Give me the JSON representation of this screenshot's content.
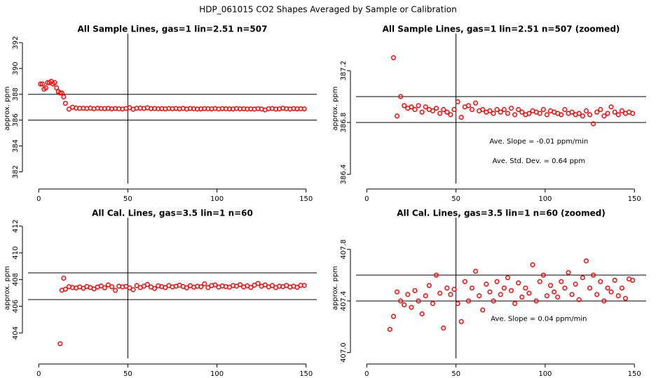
{
  "title": "HDP_061015  CO2 Shapes Averaged by Sample or Calibration",
  "chart_data": [
    {
      "type": "scatter",
      "title": "All Sample Lines, gas=1 lin=2.51 n=507",
      "y_label": "approx. ppm",
      "color": "#ff0000",
      "xlim": [
        -6,
        156
      ],
      "ylim": [
        381.1,
        392.7
      ],
      "xticks": [
        0,
        50,
        100,
        150
      ],
      "yticks": [
        382,
        384,
        386,
        388,
        390,
        392
      ],
      "hlines": [
        388,
        386
      ],
      "vline": 50,
      "x": [
        1,
        2,
        3,
        4,
        5,
        6,
        7,
        8,
        9,
        10,
        11,
        12,
        13,
        14,
        15,
        17,
        19,
        21,
        23,
        25,
        27,
        29,
        31,
        33,
        35,
        37,
        39,
        41,
        43,
        45,
        47,
        49,
        51,
        53,
        55,
        57,
        59,
        61,
        63,
        65,
        67,
        69,
        71,
        73,
        75,
        77,
        79,
        81,
        83,
        85,
        87,
        89,
        91,
        93,
        95,
        97,
        99,
        101,
        103,
        105,
        107,
        109,
        111,
        113,
        115,
        117,
        119,
        121,
        123,
        125,
        127,
        129,
        131,
        133,
        135,
        137,
        139,
        141,
        143,
        145,
        147,
        149
      ],
      "values": [
        388.8,
        388.8,
        388.4,
        388.5,
        388.9,
        388.9,
        389.0,
        388.8,
        388.9,
        388.5,
        388.2,
        388.1,
        388.1,
        387.8,
        387.3,
        386.85,
        387.0,
        386.93,
        386.91,
        386.92,
        386.9,
        386.93,
        386.88,
        386.92,
        386.9,
        386.89,
        386.91,
        386.87,
        386.9,
        386.88,
        386.86,
        386.9,
        386.96,
        386.84,
        386.92,
        386.93,
        386.9,
        386.95,
        386.89,
        386.9,
        386.88,
        386.89,
        386.87,
        386.9,
        386.88,
        386.9,
        386.87,
        386.91,
        386.86,
        386.9,
        386.88,
        386.86,
        386.87,
        386.89,
        386.88,
        386.87,
        386.9,
        386.86,
        386.89,
        386.88,
        386.87,
        386.86,
        386.9,
        386.87,
        386.88,
        386.86,
        386.87,
        386.85,
        386.89,
        386.86,
        386.79,
        386.88,
        386.9,
        386.85,
        386.87,
        386.92,
        386.88,
        386.86,
        386.89,
        386.87,
        386.88,
        386.87
      ]
    },
    {
      "type": "scatter",
      "title": "All Sample Lines, gas=1 lin=2.51 n=507 (zoomed)",
      "y_label": "approx. ppm",
      "color": "#ff0000",
      "xlim": [
        -6,
        156.6
      ],
      "ylim": [
        386.33,
        387.486
      ],
      "xticks": [
        0,
        50,
        100,
        150
      ],
      "yticks": [
        386.4,
        386.8,
        387.2
      ],
      "hlines": [
        387.0,
        386.8
      ],
      "vline": 50,
      "annotations": [
        "Ave. Slope =  -0.01  ppm/min",
        "Ave. Std. Dev. =  0.64  ppm"
      ],
      "x": [
        15,
        17,
        19,
        21,
        23,
        25,
        27,
        29,
        31,
        33,
        35,
        37,
        39,
        41,
        43,
        45,
        47,
        49,
        51,
        53,
        55,
        57,
        59,
        61,
        63,
        65,
        67,
        69,
        71,
        73,
        75,
        77,
        79,
        81,
        83,
        85,
        87,
        89,
        91,
        93,
        95,
        97,
        99,
        101,
        103,
        105,
        107,
        109,
        111,
        113,
        115,
        117,
        119,
        121,
        123,
        125,
        127,
        129,
        131,
        133,
        135,
        137,
        139,
        141,
        143,
        145,
        147,
        149
      ],
      "values": [
        387.3,
        386.85,
        387.0,
        386.93,
        386.91,
        386.92,
        386.9,
        386.93,
        386.88,
        386.92,
        386.9,
        386.89,
        386.91,
        386.87,
        386.9,
        386.88,
        386.86,
        386.9,
        386.96,
        386.84,
        386.92,
        386.93,
        386.9,
        386.95,
        386.89,
        386.9,
        386.88,
        386.89,
        386.87,
        386.9,
        386.88,
        386.9,
        386.87,
        386.91,
        386.86,
        386.9,
        386.88,
        386.86,
        386.87,
        386.89,
        386.88,
        386.87,
        386.9,
        386.86,
        386.89,
        386.88,
        386.87,
        386.86,
        386.9,
        386.87,
        386.88,
        386.86,
        386.87,
        386.85,
        386.89,
        386.86,
        386.79,
        386.88,
        386.9,
        386.85,
        386.87,
        386.92,
        386.88,
        386.86,
        386.89,
        386.87,
        386.88,
        386.87
      ]
    },
    {
      "type": "scatter",
      "title": "All Cal. Lines, gas=3.5 lin=1 n=60",
      "y_label": "approx. ppm",
      "color": "#ff0000",
      "xlim": [
        -6,
        156
      ],
      "ylim": [
        402.1,
        412.63
      ],
      "xticks": [
        0,
        50,
        100,
        150
      ],
      "yticks": [
        404,
        406,
        408,
        410,
        412
      ],
      "hlines": [
        408.5,
        406.5
      ],
      "vline": 50,
      "x": [
        12,
        13,
        14,
        15,
        17,
        19,
        21,
        23,
        25,
        27,
        29,
        31,
        33,
        35,
        37,
        39,
        41,
        43,
        45,
        47,
        49,
        51,
        53,
        55,
        57,
        59,
        61,
        63,
        65,
        67,
        69,
        71,
        73,
        75,
        77,
        79,
        81,
        83,
        85,
        87,
        89,
        91,
        93,
        95,
        97,
        99,
        101,
        103,
        105,
        107,
        109,
        111,
        113,
        115,
        117,
        119,
        121,
        123,
        125,
        127,
        129,
        131,
        133,
        135,
        137,
        139,
        141,
        143,
        145,
        147,
        149
      ],
      "values": [
        403.2,
        407.2,
        408.1,
        407.28,
        407.47,
        407.4,
        407.37,
        407.45,
        407.35,
        407.48,
        407.4,
        407.3,
        407.44,
        407.52,
        407.38,
        407.6,
        407.46,
        407.19,
        407.5,
        407.45,
        407.49,
        407.38,
        407.24,
        407.55,
        407.4,
        407.5,
        407.63,
        407.44,
        407.33,
        407.53,
        407.47,
        407.4,
        407.55,
        407.45,
        407.5,
        407.58,
        407.48,
        407.38,
        407.54,
        407.43,
        407.5,
        407.46,
        407.68,
        407.4,
        407.55,
        407.6,
        407.44,
        407.52,
        407.47,
        407.43,
        407.55,
        407.5,
        407.62,
        407.45,
        407.53,
        407.41,
        407.58,
        407.71,
        407.5,
        407.6,
        407.45,
        407.55,
        407.4,
        407.5,
        407.47,
        407.56,
        407.44,
        407.5,
        407.42,
        407.57,
        407.56
      ]
    },
    {
      "type": "scatter",
      "title": "All Cal. Lines, gas=3.5 lin=1 n=60 (zoomed)",
      "y_label": "approx. ppm",
      "color": "#ff0000",
      "xlim": [
        -6,
        156.6
      ],
      "ylim": [
        406.955,
        408.045
      ],
      "xticks": [
        0,
        50,
        100,
        150
      ],
      "yticks": [
        {
          "value": 407,
          "label": "407.0"
        },
        407.4,
        407.8
      ],
      "hlines": [
        407.6,
        407.4
      ],
      "vline": 50,
      "annotations": [
        "Ave. Slope =  0.04  ppm/min"
      ],
      "x": [
        13,
        15,
        17,
        19,
        21,
        23,
        25,
        27,
        29,
        31,
        33,
        35,
        37,
        39,
        41,
        43,
        45,
        47,
        49,
        51,
        53,
        55,
        57,
        59,
        61,
        63,
        65,
        67,
        69,
        71,
        73,
        75,
        77,
        79,
        81,
        83,
        85,
        87,
        89,
        91,
        93,
        95,
        97,
        99,
        101,
        103,
        105,
        107,
        109,
        111,
        113,
        115,
        117,
        119,
        121,
        123,
        125,
        127,
        129,
        131,
        133,
        135,
        137,
        139,
        141,
        143,
        145,
        147,
        149
      ],
      "values": [
        407.18,
        407.28,
        407.47,
        407.4,
        407.37,
        407.45,
        407.35,
        407.48,
        407.4,
        407.3,
        407.44,
        407.52,
        407.38,
        407.6,
        407.46,
        407.19,
        407.5,
        407.45,
        407.49,
        407.38,
        407.24,
        407.55,
        407.4,
        407.5,
        407.63,
        407.44,
        407.33,
        407.53,
        407.47,
        407.4,
        407.55,
        407.45,
        407.5,
        407.58,
        407.48,
        407.38,
        407.54,
        407.43,
        407.5,
        407.46,
        407.68,
        407.4,
        407.55,
        407.6,
        407.44,
        407.52,
        407.47,
        407.43,
        407.55,
        407.5,
        407.62,
        407.45,
        407.53,
        407.41,
        407.58,
        407.71,
        407.5,
        407.6,
        407.45,
        407.55,
        407.4,
        407.5,
        407.47,
        407.56,
        407.44,
        407.5,
        407.42,
        407.57,
        407.56
      ]
    }
  ]
}
